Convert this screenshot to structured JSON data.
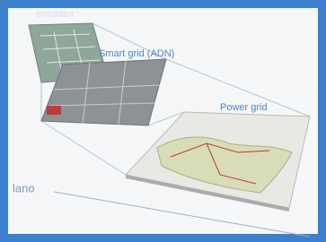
{
  "layers": [
    {
      "label": "emulator"
    },
    {
      "label": "Smart grid (ADN)"
    },
    {
      "label": "Power grid"
    }
  ],
  "axis_label": "lano"
}
